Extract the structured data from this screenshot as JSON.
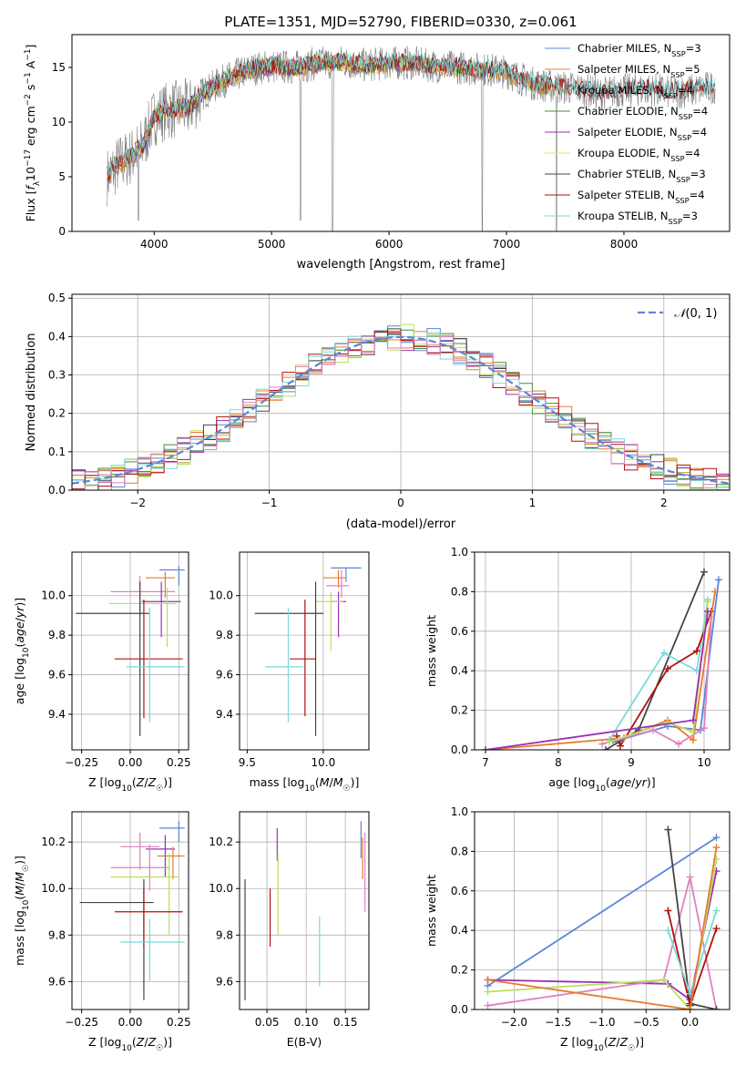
{
  "figure_title": "PLATE=1351, MJD=52790, FIBERID=0330, z=0.061",
  "colors": {
    "chabrier_miles": "#5b86d6",
    "salpeter_miles": "#e87b2f",
    "kroupa_miles": "#c8922a",
    "chabrier_elodie": "#3f8f3f",
    "salpeter_elodie": "#9b30b0",
    "kroupa_elodie": "#e6e05a",
    "chabrier_stelib": "#444444",
    "salpeter_stelib": "#b01010",
    "kroupa_stelib": "#7adada",
    "pink": "#e080c0",
    "lime": "#b8e060",
    "data": "#808080",
    "normal": "#5b86d6"
  },
  "chart_data": [
    {
      "id": "spectrum",
      "type": "line",
      "xlabel": "wavelength [Angstrom, rest frame]",
      "ylabel": "Flux [f_λ10^-17 erg cm^-2 s^-1 A^-1]",
      "xlim": [
        3300,
        8900
      ],
      "ylim": [
        0,
        18
      ],
      "xticks": [
        4000,
        5000,
        6000,
        7000,
        8000
      ],
      "yticks": [
        0,
        5,
        10,
        15
      ],
      "legend": [
        {
          "label": "Chabrier MILES, N",
          "sub": "SSP",
          "tail": "=3"
        },
        {
          "label": "Salpeter MILES, N",
          "sub": "SSP",
          "tail": "=5"
        },
        {
          "label": "Kroupa MILES, N",
          "sub": "SSP",
          "tail": "=4"
        },
        {
          "label": "Chabrier ELODIE, N",
          "sub": "SSP",
          "tail": "=4"
        },
        {
          "label": "Salpeter ELODIE, N",
          "sub": "SSP",
          "tail": "=4"
        },
        {
          "label": "Kroupa ELODIE, N",
          "sub": "SSP",
          "tail": "=4"
        },
        {
          "label": "Chabrier STELIB, N",
          "sub": "SSP",
          "tail": "=3"
        },
        {
          "label": "Salpeter STELIB, N",
          "sub": "SSP",
          "tail": "=4"
        },
        {
          "label": "Kroupa STELIB, N",
          "sub": "SSP",
          "tail": "=3"
        }
      ],
      "continuum": [
        [
          3600,
          5.0
        ],
        [
          3700,
          6.2
        ],
        [
          3800,
          6.8
        ],
        [
          3900,
          7.8
        ],
        [
          4000,
          10.5
        ],
        [
          4100,
          11.0
        ],
        [
          4200,
          11.2
        ],
        [
          4300,
          11.3
        ],
        [
          4400,
          12.5
        ],
        [
          4500,
          13.2
        ],
        [
          4600,
          13.8
        ],
        [
          4700,
          14.3
        ],
        [
          4800,
          14.7
        ],
        [
          4900,
          15.0
        ],
        [
          5000,
          15.1
        ],
        [
          5200,
          15.0
        ],
        [
          5400,
          15.4
        ],
        [
          5600,
          15.5
        ],
        [
          5800,
          15.2
        ],
        [
          6000,
          15.4
        ],
        [
          6200,
          15.4
        ],
        [
          6400,
          15.1
        ],
        [
          6600,
          15.0
        ],
        [
          6800,
          14.8
        ],
        [
          7000,
          14.6
        ],
        [
          7200,
          13.6
        ],
        [
          7400,
          13.2
        ],
        [
          7600,
          13.1
        ],
        [
          7800,
          12.6
        ],
        [
          8000,
          12.9
        ],
        [
          8200,
          13.0
        ],
        [
          8400,
          12.7
        ],
        [
          8600,
          12.9
        ],
        [
          8800,
          13.3
        ]
      ]
    },
    {
      "id": "residuals",
      "type": "bar",
      "xlabel": "(data-model)/error",
      "ylabel": "Normed distribution",
      "xlim": [
        -2.5,
        2.5
      ],
      "ylim": [
        0,
        0.51
      ],
      "xticks": [
        -2,
        -1,
        0,
        1,
        2
      ],
      "yticks": [
        0.0,
        0.1,
        0.2,
        0.3,
        0.4,
        0.5
      ],
      "legend": "N(0,1)",
      "bin_width": 0.1
    },
    {
      "id": "z_age",
      "type": "scatter",
      "xlabel": "Z [log10(Z/Z☉)]",
      "ylabel": "age  [log10(age/yr)]",
      "xlim": [
        -0.3,
        0.3
      ],
      "ylim": [
        9.22,
        10.22
      ],
      "xticks": [
        -0.25,
        0.0,
        0.25
      ],
      "xticklabels": [
        "−0.25",
        "0.00",
        "0.25"
      ],
      "yticks": [
        9.4,
        9.6,
        9.8,
        10.0
      ],
      "errorbars": [
        {
          "c": "chabrier_miles",
          "x": 0.25,
          "xerr": [
            0.1,
            0.03
          ],
          "y": 10.13,
          "yerr": [
            0.08,
            0.02
          ]
        },
        {
          "c": "salpeter_miles",
          "x": 0.18,
          "xerr": [
            0.1,
            0.05
          ],
          "y": 10.09,
          "yerr": [
            0.1,
            0.03
          ]
        },
        {
          "c": "pink",
          "x": 0.05,
          "xerr": [
            0.15,
            0.18
          ],
          "y": 10.02,
          "yerr": [
            0.1,
            0.08
          ]
        },
        {
          "c": "salpeter_elodie",
          "x": 0.16,
          "xerr": [
            0.1,
            0.1
          ],
          "y": 9.97,
          "yerr": [
            0.18,
            0.1
          ]
        },
        {
          "c": "lime",
          "x": 0.19,
          "xerr": [
            0.3,
            0.05
          ],
          "y": 9.96,
          "yerr": [
            0.22,
            0.08
          ]
        },
        {
          "c": "chabrier_stelib",
          "x": 0.05,
          "xerr": [
            0.33,
            0.05
          ],
          "y": 9.91,
          "yerr": [
            0.62,
            0.16
          ]
        },
        {
          "c": "salpeter_stelib",
          "x": 0.07,
          "xerr": [
            0.15,
            0.2
          ],
          "y": 9.68,
          "yerr": [
            0.3,
            0.3
          ]
        },
        {
          "c": "kroupa_stelib",
          "x": 0.1,
          "xerr": [
            0.12,
            0.18
          ],
          "y": 9.64,
          "yerr": [
            0.28,
            0.3
          ]
        }
      ]
    },
    {
      "id": "mass_age",
      "type": "scatter",
      "xlabel": "mass [log10(M/M☉)]",
      "ylabel": "",
      "xlim": [
        9.45,
        10.3
      ],
      "ylim": [
        9.22,
        10.22
      ],
      "xticks": [
        9.5,
        10.0
      ],
      "xticklabels": [
        "9.5",
        "10.0"
      ],
      "yticks": [
        9.4,
        9.6,
        9.8,
        10.0
      ],
      "errorbars": [
        {
          "c": "chabrier_miles",
          "x": 10.15,
          "xerr": [
            0.1,
            0.1
          ],
          "y": 10.14,
          "yerr": [
            0.07,
            0.0
          ]
        },
        {
          "c": "salpeter_miles",
          "x": 10.1,
          "xerr": [
            0.1,
            0.05
          ],
          "y": 10.09,
          "yerr": [
            0.05,
            0.04
          ]
        },
        {
          "c": "pink",
          "x": 10.12,
          "xerr": [
            0.1,
            0.05
          ],
          "y": 10.05,
          "yerr": [
            0.06,
            0.08
          ]
        },
        {
          "c": "salpeter_elodie",
          "x": 10.1,
          "xerr": [
            0.05,
            0.05
          ],
          "y": 9.97,
          "yerr": [
            0.18,
            0.05
          ]
        },
        {
          "c": "lime",
          "x": 10.05,
          "xerr": [
            0.1,
            0.08
          ],
          "y": 9.97,
          "yerr": [
            0.25,
            0.05
          ]
        },
        {
          "c": "chabrier_stelib",
          "x": 9.95,
          "xerr": [
            0.4,
            0.05
          ],
          "y": 9.91,
          "yerr": [
            0.62,
            0.16
          ]
        },
        {
          "c": "salpeter_stelib",
          "x": 9.88,
          "xerr": [
            0.1,
            0.07
          ],
          "y": 9.68,
          "yerr": [
            0.29,
            0.3
          ]
        },
        {
          "c": "kroupa_stelib",
          "x": 9.77,
          "xerr": [
            0.15,
            0.1
          ],
          "y": 9.64,
          "yerr": [
            0.28,
            0.3
          ]
        }
      ]
    },
    {
      "id": "age_weight",
      "type": "line",
      "xlabel": "age  [log10(age/yr)]",
      "ylabel": "mass weight",
      "xlim": [
        6.85,
        10.35
      ],
      "ylim": [
        0.0,
        1.0
      ],
      "xticks": [
        7,
        8,
        9,
        10
      ],
      "xticklabels": [
        "7",
        "8",
        "9",
        "10"
      ],
      "yticks": [
        0.0,
        0.2,
        0.4,
        0.6,
        0.8,
        1.0
      ],
      "series": [
        {
          "c": "chabrier_stelib",
          "x": [
            8.65,
            9.1,
            10.0
          ],
          "y": [
            0.0,
            0.1,
            0.9
          ]
        },
        {
          "c": "kroupa_stelib",
          "x": [
            8.7,
            9.45,
            9.9,
            10.05
          ],
          "y": [
            0.05,
            0.49,
            0.4,
            0.76
          ]
        },
        {
          "c": "salpeter_stelib",
          "x": [
            8.8,
            8.85,
            9.5,
            9.9,
            10.1
          ],
          "y": [
            0.07,
            0.02,
            0.41,
            0.5,
            0.7
          ]
        },
        {
          "c": "chabrier_miles",
          "x": [
            8.75,
            9.5,
            9.95,
            10.2
          ],
          "y": [
            0.04,
            0.12,
            0.1,
            0.86
          ]
        },
        {
          "c": "salpeter_miles",
          "x": [
            7.0,
            8.9,
            9.5,
            9.85,
            10.15
          ],
          "y": [
            0.0,
            0.06,
            0.15,
            0.05,
            0.8
          ]
        },
        {
          "c": "pink",
          "x": [
            8.6,
            9.3,
            9.65,
            10.0,
            10.1
          ],
          "y": [
            0.03,
            0.1,
            0.03,
            0.11,
            0.67
          ]
        },
        {
          "c": "lime",
          "x": [
            8.7,
            9.5,
            9.85,
            10.05
          ],
          "y": [
            0.04,
            0.14,
            0.09,
            0.75
          ]
        },
        {
          "c": "salpeter_elodie",
          "x": [
            7.0,
            9.85,
            10.05
          ],
          "y": [
            0.0,
            0.15,
            0.7
          ]
        }
      ]
    },
    {
      "id": "z_mass",
      "type": "scatter",
      "xlabel": "Z [log10(Z/Z☉)]",
      "ylabel": "mass [log10(M/M☉)]",
      "xlim": [
        -0.3,
        0.3
      ],
      "ylim": [
        9.48,
        10.33
      ],
      "xticks": [
        -0.25,
        0.0,
        0.25
      ],
      "xticklabels": [
        "−0.25",
        "0.00",
        "0.25"
      ],
      "yticks": [
        9.6,
        9.8,
        10.0,
        10.2
      ],
      "errorbars": [
        {
          "c": "chabrier_miles",
          "x": 0.25,
          "xerr": [
            0.1,
            0.03
          ],
          "y": 10.26,
          "yerr": [
            0.06,
            0.03
          ]
        },
        {
          "c": "pink",
          "x": 0.05,
          "xerr": [
            0.1,
            0.1
          ],
          "y": 10.18,
          "yerr": [
            0.1,
            0.06
          ]
        },
        {
          "c": "salpeter_elodie",
          "x": 0.18,
          "xerr": [
            0.1,
            0.05
          ],
          "y": 10.17,
          "yerr": [
            0.12,
            0.06
          ]
        },
        {
          "c": "salpeter_miles",
          "x": 0.22,
          "xerr": [
            0.08,
            0.06
          ],
          "y": 10.14,
          "yerr": [
            0.1,
            0.04
          ]
        },
        {
          "c": "pink",
          "x": 0.1,
          "xerr": [
            0.2,
            0.1
          ],
          "y": 10.09,
          "yerr": [
            0.1,
            0.1
          ]
        },
        {
          "c": "lime",
          "x": 0.2,
          "xerr": [
            0.3,
            0.05
          ],
          "y": 10.05,
          "yerr": [
            0.25,
            0.1
          ]
        },
        {
          "c": "chabrier_stelib",
          "x": 0.07,
          "xerr": [
            0.33,
            0.05
          ],
          "y": 9.94,
          "yerr": [
            0.42,
            0.1
          ]
        },
        {
          "c": "salpeter_stelib",
          "x": 0.07,
          "xerr": [
            0.15,
            0.2
          ],
          "y": 9.9,
          "yerr": [
            0.15,
            0.1
          ]
        },
        {
          "c": "kroupa_stelib",
          "x": 0.1,
          "xerr": [
            0.15,
            0.18
          ],
          "y": 9.77,
          "yerr": [
            0.17,
            0.1
          ]
        }
      ]
    },
    {
      "id": "ebv_mass",
      "type": "scatter",
      "xlabel": "E(B-V)",
      "ylabel": "",
      "xlim": [
        0.015,
        0.18
      ],
      "ylim": [
        9.48,
        10.33
      ],
      "xticks": [
        0.05,
        0.1,
        0.15
      ],
      "xticklabels": [
        "0.05",
        "0.10",
        "0.15"
      ],
      "yticks": [
        9.6,
        9.8,
        10.0,
        10.2
      ],
      "errorbars": [
        {
          "c": "chabrier_stelib",
          "x": 0.022,
          "xerr": [
            0,
            0
          ],
          "y": 9.78,
          "yerr": [
            0.26,
            0.26
          ]
        },
        {
          "c": "salpeter_stelib",
          "x": 0.054,
          "xerr": [
            0,
            0
          ],
          "y": 9.85,
          "yerr": [
            0.1,
            0.15
          ]
        },
        {
          "c": "salpeter_elodie",
          "x": 0.063,
          "xerr": [
            0,
            0
          ],
          "y": 10.17,
          "yerr": [
            0.05,
            0.09
          ]
        },
        {
          "c": "lime",
          "x": 0.064,
          "xerr": [
            0,
            0
          ],
          "y": 10.0,
          "yerr": [
            0.2,
            0.15
          ]
        },
        {
          "c": "kroupa_stelib",
          "x": 0.117,
          "xerr": [
            0,
            0
          ],
          "y": 9.72,
          "yerr": [
            0.14,
            0.16
          ]
        },
        {
          "c": "chabrier_miles",
          "x": 0.17,
          "xerr": [
            0,
            0
          ],
          "y": 10.2,
          "yerr": [
            0.07,
            0.09
          ]
        },
        {
          "c": "salpeter_miles",
          "x": 0.172,
          "xerr": [
            0,
            0
          ],
          "y": 10.12,
          "yerr": [
            0.08,
            0.1
          ]
        },
        {
          "c": "pink",
          "x": 0.175,
          "xerr": [
            0,
            0
          ],
          "y": 10.07,
          "yerr": [
            0.17,
            0.17
          ]
        }
      ]
    },
    {
      "id": "z_weight",
      "type": "line",
      "xlabel": "Z [log10(Z/Z☉)]",
      "ylabel": "mass weight",
      "xlim": [
        -2.45,
        0.45
      ],
      "ylim": [
        0.0,
        1.0
      ],
      "xticks": [
        -2.0,
        -1.5,
        -1.0,
        -0.5,
        0.0
      ],
      "xticklabels": [
        "−2.0",
        "−1.5",
        "−1.0",
        "−0.5",
        "0.0"
      ],
      "yticks": [
        0.0,
        0.2,
        0.4,
        0.6,
        0.8,
        1.0
      ],
      "series": [
        {
          "c": "chabrier_miles",
          "x": [
            -2.3,
            0.3
          ],
          "y": [
            0.12,
            0.87
          ]
        },
        {
          "c": "salpeter_elodie",
          "x": [
            -2.3,
            -0.25,
            0.0,
            0.3
          ],
          "y": [
            0.15,
            0.13,
            0.05,
            0.7
          ]
        },
        {
          "c": "pink",
          "x": [
            -2.3,
            -0.3,
            0.0,
            0.3
          ],
          "y": [
            0.02,
            0.15,
            0.67,
            0.0
          ]
        },
        {
          "c": "lime",
          "x": [
            -2.3,
            -0.3,
            0.0,
            0.3
          ],
          "y": [
            0.09,
            0.15,
            0.0,
            0.76
          ]
        },
        {
          "c": "chabrier_stelib",
          "x": [
            -0.25,
            0.0,
            0.3
          ],
          "y": [
            0.91,
            0.03,
            0.0
          ]
        },
        {
          "c": "salpeter_stelib",
          "x": [
            -0.25,
            0.0,
            0.3
          ],
          "y": [
            0.5,
            0.02,
            0.41
          ]
        },
        {
          "c": "kroupa_stelib",
          "x": [
            -0.25,
            0.0,
            0.3
          ],
          "y": [
            0.4,
            0.08,
            0.5
          ]
        },
        {
          "c": "salpeter_miles",
          "x": [
            -2.3,
            0.0,
            0.3
          ],
          "y": [
            0.15,
            0.0,
            0.82
          ]
        }
      ]
    }
  ]
}
